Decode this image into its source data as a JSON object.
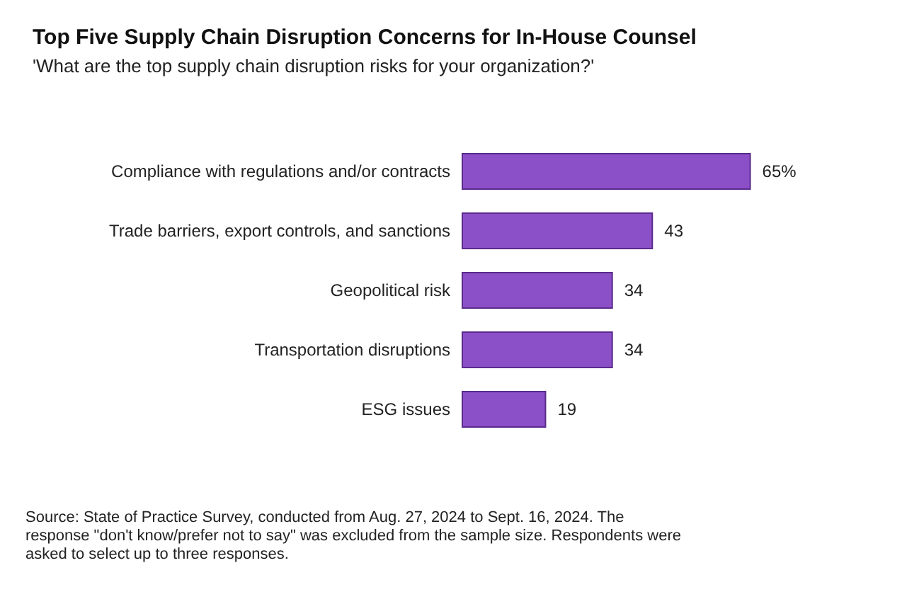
{
  "chart_data": {
    "type": "bar",
    "orientation": "horizontal",
    "title": "Top Five Supply Chain Disruption Concerns for In-House Counsel",
    "subtitle": "'What are the top supply chain disruption risks for your organization?'",
    "categories": [
      "Compliance with regulations and/or contracts",
      "Trade barriers, export controls, and sanctions",
      "Geopolitical risk",
      "Transportation disruptions",
      "ESG issues"
    ],
    "values": [
      65,
      43,
      34,
      34,
      19
    ],
    "value_labels": [
      "65%",
      "43",
      "34",
      "34",
      "19"
    ],
    "color": "#8b4fc8",
    "tick_labels": "y",
    "annotations": [
      "Source: State of Practice Survey, conducted from Aug. 27, 2024 to Sept. 16, 2024. The response \"don't know/prefer not to say\" was excluded from the sample size. Respondents were asked to select up to three responses."
    ]
  }
}
